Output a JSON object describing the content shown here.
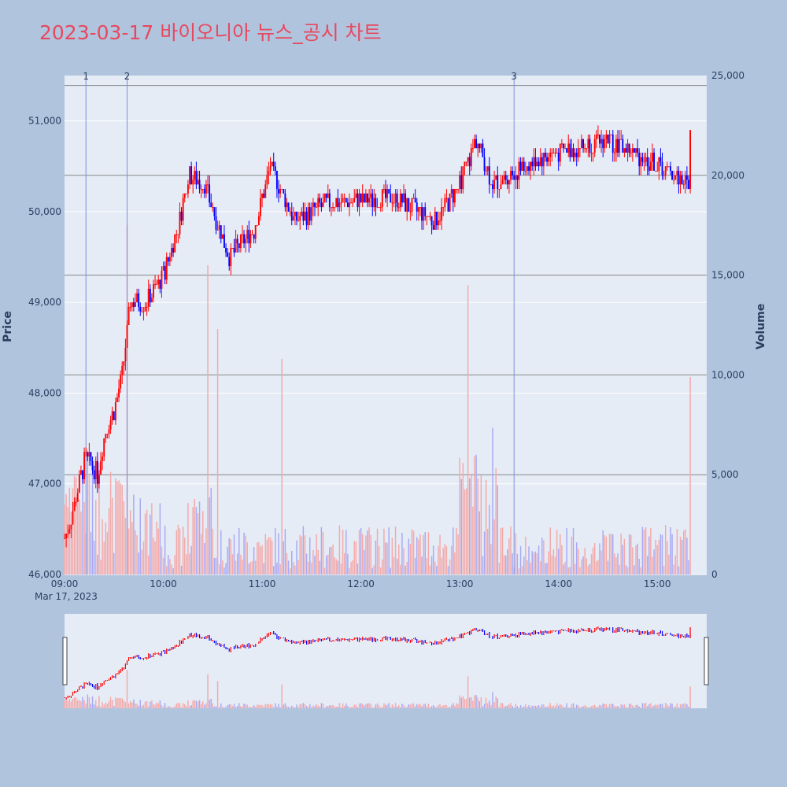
{
  "title": "2023-03-17 바이오니아 뉴스_공시 차트",
  "colors": {
    "background": "#b0c4de",
    "plot_background": "#e5ecf6",
    "up": "#ff0000",
    "down": "#0000ff",
    "volume_up": "#f4a9a9",
    "volume_down": "#a9a9f4",
    "title": "#e8485f",
    "axis_text": "#2a3f5f"
  },
  "chart_data": {
    "type": "candlestick",
    "date_label": "Mar 17, 2023",
    "x_ticks": [
      "09:00",
      "10:00",
      "11:00",
      "12:00",
      "13:00",
      "14:00",
      "15:00"
    ],
    "x_range": [
      "09:00",
      "15:30"
    ],
    "price_axis": {
      "title": "Price",
      "range": [
        46000,
        51500
      ],
      "ticks": [
        "46,000",
        "47,000",
        "48,000",
        "49,000",
        "50,000",
        "51,000"
      ]
    },
    "volume_axis": {
      "title": "Volume",
      "range": [
        0,
        25000
      ],
      "ticks": [
        "0",
        "5,000",
        "10,000",
        "15,000",
        "20,000",
        "25,000"
      ]
    },
    "markers": [
      {
        "label": "1",
        "time": "09:13"
      },
      {
        "label": "2",
        "time": "09:38"
      },
      {
        "label": "3",
        "time": "13:33"
      }
    ],
    "hlines_volume": [
      5000,
      10000,
      15000,
      20000,
      24500
    ],
    "price_path": [
      [
        "09:00",
        46400
      ],
      [
        "09:05",
        46700
      ],
      [
        "09:13",
        47300
      ],
      [
        "09:20",
        47100
      ],
      [
        "09:25",
        47600
      ],
      [
        "09:30",
        47800
      ],
      [
        "09:35",
        48200
      ],
      [
        "09:40",
        49000
      ],
      [
        "09:50",
        49000
      ],
      [
        "10:00",
        49300
      ],
      [
        "10:10",
        49900
      ],
      [
        "10:15",
        50400
      ],
      [
        "10:25",
        50300
      ],
      [
        "10:40",
        49500
      ],
      [
        "10:55",
        49800
      ],
      [
        "11:05",
        50500
      ],
      [
        "11:20",
        49900
      ],
      [
        "11:40",
        50100
      ],
      [
        "12:20",
        50150
      ],
      [
        "12:45",
        49900
      ],
      [
        "13:00",
        50300
      ],
      [
        "13:10",
        50800
      ],
      [
        "13:20",
        50300
      ],
      [
        "13:50",
        50600
      ],
      [
        "14:30",
        50800
      ],
      [
        "15:00",
        50500
      ],
      [
        "15:20",
        50300
      ]
    ],
    "last_price": 50900,
    "last_volume": 9900
  }
}
